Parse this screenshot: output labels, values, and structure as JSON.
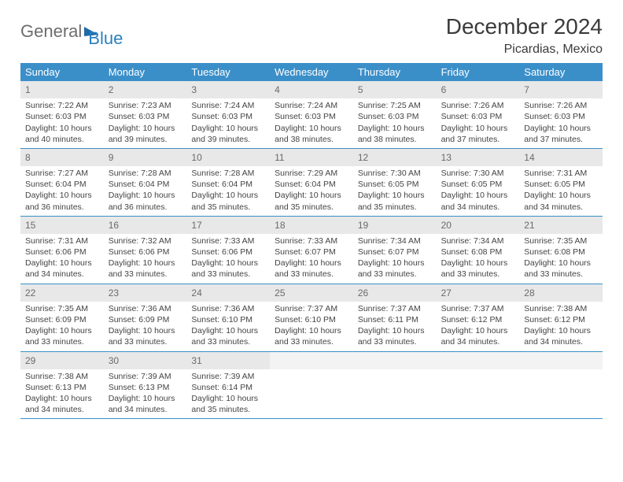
{
  "logo": {
    "part1": "General",
    "part2": "Blue"
  },
  "title": "December 2024",
  "location": "Picardias, Mexico",
  "colors": {
    "header_bg": "#3b8fc9",
    "header_text": "#ffffff",
    "daynum_bg": "#e8e8e8",
    "border": "#3b8fc9",
    "logo_gray": "#6d6d6d",
    "logo_blue": "#2a7fbf"
  },
  "day_names": [
    "Sunday",
    "Monday",
    "Tuesday",
    "Wednesday",
    "Thursday",
    "Friday",
    "Saturday"
  ],
  "weeks": [
    [
      {
        "n": "1",
        "sr": "Sunrise: 7:22 AM",
        "ss": "Sunset: 6:03 PM",
        "dl1": "Daylight: 10 hours",
        "dl2": "and 40 minutes."
      },
      {
        "n": "2",
        "sr": "Sunrise: 7:23 AM",
        "ss": "Sunset: 6:03 PM",
        "dl1": "Daylight: 10 hours",
        "dl2": "and 39 minutes."
      },
      {
        "n": "3",
        "sr": "Sunrise: 7:24 AM",
        "ss": "Sunset: 6:03 PM",
        "dl1": "Daylight: 10 hours",
        "dl2": "and 39 minutes."
      },
      {
        "n": "4",
        "sr": "Sunrise: 7:24 AM",
        "ss": "Sunset: 6:03 PM",
        "dl1": "Daylight: 10 hours",
        "dl2": "and 38 minutes."
      },
      {
        "n": "5",
        "sr": "Sunrise: 7:25 AM",
        "ss": "Sunset: 6:03 PM",
        "dl1": "Daylight: 10 hours",
        "dl2": "and 38 minutes."
      },
      {
        "n": "6",
        "sr": "Sunrise: 7:26 AM",
        "ss": "Sunset: 6:03 PM",
        "dl1": "Daylight: 10 hours",
        "dl2": "and 37 minutes."
      },
      {
        "n": "7",
        "sr": "Sunrise: 7:26 AM",
        "ss": "Sunset: 6:03 PM",
        "dl1": "Daylight: 10 hours",
        "dl2": "and 37 minutes."
      }
    ],
    [
      {
        "n": "8",
        "sr": "Sunrise: 7:27 AM",
        "ss": "Sunset: 6:04 PM",
        "dl1": "Daylight: 10 hours",
        "dl2": "and 36 minutes."
      },
      {
        "n": "9",
        "sr": "Sunrise: 7:28 AM",
        "ss": "Sunset: 6:04 PM",
        "dl1": "Daylight: 10 hours",
        "dl2": "and 36 minutes."
      },
      {
        "n": "10",
        "sr": "Sunrise: 7:28 AM",
        "ss": "Sunset: 6:04 PM",
        "dl1": "Daylight: 10 hours",
        "dl2": "and 35 minutes."
      },
      {
        "n": "11",
        "sr": "Sunrise: 7:29 AM",
        "ss": "Sunset: 6:04 PM",
        "dl1": "Daylight: 10 hours",
        "dl2": "and 35 minutes."
      },
      {
        "n": "12",
        "sr": "Sunrise: 7:30 AM",
        "ss": "Sunset: 6:05 PM",
        "dl1": "Daylight: 10 hours",
        "dl2": "and 35 minutes."
      },
      {
        "n": "13",
        "sr": "Sunrise: 7:30 AM",
        "ss": "Sunset: 6:05 PM",
        "dl1": "Daylight: 10 hours",
        "dl2": "and 34 minutes."
      },
      {
        "n": "14",
        "sr": "Sunrise: 7:31 AM",
        "ss": "Sunset: 6:05 PM",
        "dl1": "Daylight: 10 hours",
        "dl2": "and 34 minutes."
      }
    ],
    [
      {
        "n": "15",
        "sr": "Sunrise: 7:31 AM",
        "ss": "Sunset: 6:06 PM",
        "dl1": "Daylight: 10 hours",
        "dl2": "and 34 minutes."
      },
      {
        "n": "16",
        "sr": "Sunrise: 7:32 AM",
        "ss": "Sunset: 6:06 PM",
        "dl1": "Daylight: 10 hours",
        "dl2": "and 33 minutes."
      },
      {
        "n": "17",
        "sr": "Sunrise: 7:33 AM",
        "ss": "Sunset: 6:06 PM",
        "dl1": "Daylight: 10 hours",
        "dl2": "and 33 minutes."
      },
      {
        "n": "18",
        "sr": "Sunrise: 7:33 AM",
        "ss": "Sunset: 6:07 PM",
        "dl1": "Daylight: 10 hours",
        "dl2": "and 33 minutes."
      },
      {
        "n": "19",
        "sr": "Sunrise: 7:34 AM",
        "ss": "Sunset: 6:07 PM",
        "dl1": "Daylight: 10 hours",
        "dl2": "and 33 minutes."
      },
      {
        "n": "20",
        "sr": "Sunrise: 7:34 AM",
        "ss": "Sunset: 6:08 PM",
        "dl1": "Daylight: 10 hours",
        "dl2": "and 33 minutes."
      },
      {
        "n": "21",
        "sr": "Sunrise: 7:35 AM",
        "ss": "Sunset: 6:08 PM",
        "dl1": "Daylight: 10 hours",
        "dl2": "and 33 minutes."
      }
    ],
    [
      {
        "n": "22",
        "sr": "Sunrise: 7:35 AM",
        "ss": "Sunset: 6:09 PM",
        "dl1": "Daylight: 10 hours",
        "dl2": "and 33 minutes."
      },
      {
        "n": "23",
        "sr": "Sunrise: 7:36 AM",
        "ss": "Sunset: 6:09 PM",
        "dl1": "Daylight: 10 hours",
        "dl2": "and 33 minutes."
      },
      {
        "n": "24",
        "sr": "Sunrise: 7:36 AM",
        "ss": "Sunset: 6:10 PM",
        "dl1": "Daylight: 10 hours",
        "dl2": "and 33 minutes."
      },
      {
        "n": "25",
        "sr": "Sunrise: 7:37 AM",
        "ss": "Sunset: 6:10 PM",
        "dl1": "Daylight: 10 hours",
        "dl2": "and 33 minutes."
      },
      {
        "n": "26",
        "sr": "Sunrise: 7:37 AM",
        "ss": "Sunset: 6:11 PM",
        "dl1": "Daylight: 10 hours",
        "dl2": "and 33 minutes."
      },
      {
        "n": "27",
        "sr": "Sunrise: 7:37 AM",
        "ss": "Sunset: 6:12 PM",
        "dl1": "Daylight: 10 hours",
        "dl2": "and 34 minutes."
      },
      {
        "n": "28",
        "sr": "Sunrise: 7:38 AM",
        "ss": "Sunset: 6:12 PM",
        "dl1": "Daylight: 10 hours",
        "dl2": "and 34 minutes."
      }
    ],
    [
      {
        "n": "29",
        "sr": "Sunrise: 7:38 AM",
        "ss": "Sunset: 6:13 PM",
        "dl1": "Daylight: 10 hours",
        "dl2": "and 34 minutes."
      },
      {
        "n": "30",
        "sr": "Sunrise: 7:39 AM",
        "ss": "Sunset: 6:13 PM",
        "dl1": "Daylight: 10 hours",
        "dl2": "and 34 minutes."
      },
      {
        "n": "31",
        "sr": "Sunrise: 7:39 AM",
        "ss": "Sunset: 6:14 PM",
        "dl1": "Daylight: 10 hours",
        "dl2": "and 35 minutes."
      },
      {
        "empty": true
      },
      {
        "empty": true
      },
      {
        "empty": true
      },
      {
        "empty": true
      }
    ]
  ]
}
